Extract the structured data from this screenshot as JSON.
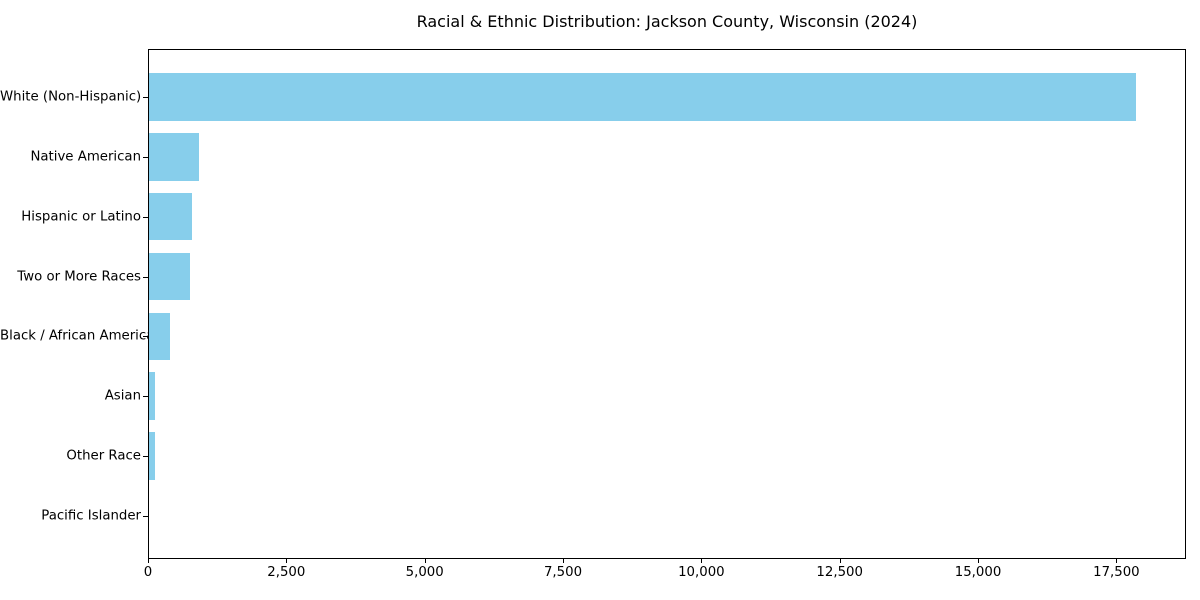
{
  "chart_data": {
    "type": "bar",
    "orientation": "horizontal",
    "title": "Racial & Ethnic Distribution: Jackson County, Wisconsin (2024)",
    "xlabel": "",
    "ylabel": "",
    "categories": [
      "White (Non-Hispanic)",
      "Native American",
      "Hispanic or Latino",
      "Two or More Races",
      "Black / African American",
      "Asian",
      "Other Race",
      "Pacific Islander"
    ],
    "values": [
      17850,
      920,
      795,
      750,
      405,
      125,
      120,
      5
    ],
    "xlim": [
      0,
      18740
    ],
    "xticks": [
      0,
      2500,
      5000,
      7500,
      10000,
      12500,
      15000,
      17500
    ],
    "xtick_labels": [
      "0",
      "2,500",
      "5,000",
      "7,500",
      "10,000",
      "12,500",
      "15,000",
      "17,500"
    ],
    "bar_color": "#87CEEB",
    "axis_color": "#000000",
    "background_color": "#ffffff",
    "grid": false,
    "legend": null,
    "sort_order": "descending"
  }
}
